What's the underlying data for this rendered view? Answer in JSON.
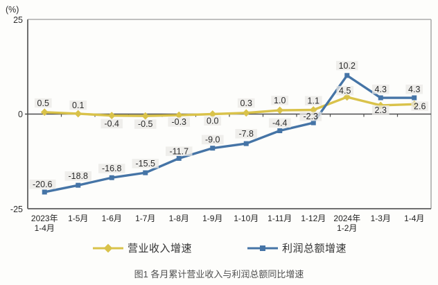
{
  "figure": {
    "caption": "图1 各月累计营业收入与利润总额同比增速"
  },
  "chart_data": {
    "type": "line",
    "title": "图1 各月累计营业收入与利润总额同比增速",
    "categories": [
      "2023年\n1-4月",
      "1-5月",
      "1-6月",
      "1-7月",
      "1-8月",
      "1-9月",
      "1-10月",
      "1-11月",
      "1-12月",
      "2024年\n1-2月",
      "1-3月",
      "1-4月"
    ],
    "series": [
      {
        "name": "营业收入增速",
        "color": "#d9c24a",
        "marker": "diamond",
        "values": [
          0.5,
          0.1,
          -0.4,
          -0.5,
          -0.3,
          0.0,
          0.3,
          1.0,
          1.1,
          4.5,
          2.3,
          2.6
        ]
      },
      {
        "name": "利润总额增速",
        "color": "#4574a6",
        "marker": "square",
        "values": [
          -20.6,
          -18.8,
          -16.8,
          -15.5,
          -11.7,
          -9.0,
          -7.8,
          -4.4,
          -2.3,
          10.2,
          4.3,
          4.3
        ]
      }
    ],
    "ylabel": "(%)",
    "ylim": [
      -25,
      25
    ],
    "yticks": [
      25,
      0,
      -25
    ],
    "grid": false,
    "legend_position": "bottom",
    "value_labels": true,
    "label_offsets": [
      [
        [
          -2,
          -9
        ],
        [
          0,
          -8
        ],
        [
          0,
          16
        ],
        [
          0,
          16
        ],
        [
          0,
          14
        ],
        [
          0,
          14
        ],
        [
          0,
          -10
        ],
        [
          0,
          -10
        ],
        [
          0,
          -9
        ],
        [
          -3,
          -5
        ],
        [
          0,
          11
        ],
        [
          8,
          7
        ]
      ],
      [
        [
          -3,
          -7
        ],
        [
          0,
          -9
        ],
        [
          0,
          -9
        ],
        [
          0,
          -9
        ],
        [
          0,
          -6
        ],
        [
          0,
          -8
        ],
        [
          0,
          -10
        ],
        [
          0,
          -7
        ],
        [
          -4,
          -5
        ],
        [
          0,
          -10
        ],
        [
          0,
          -8
        ],
        [
          0,
          -8
        ]
      ]
    ],
    "colors": {
      "axis_dark": "#6f6f6f",
      "axis_light": "#ababab",
      "zero_line": "#4d4d4d",
      "label_bg": "#e9e8e5"
    }
  }
}
